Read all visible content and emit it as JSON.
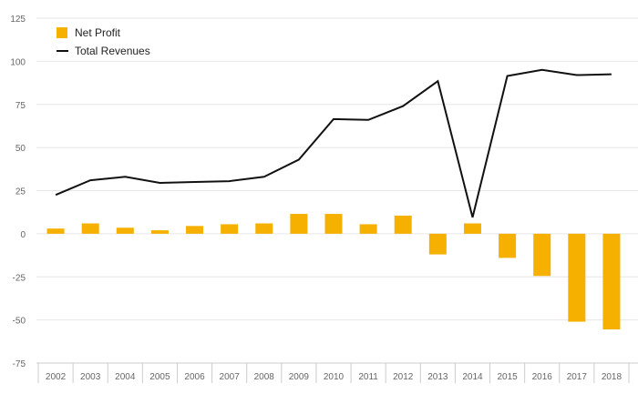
{
  "chart_data": {
    "type": "bar",
    "categories": [
      "2002",
      "2003",
      "2004",
      "2005",
      "2006",
      "2007",
      "2008",
      "2009",
      "2010",
      "2011",
      "2012",
      "2013",
      "2014",
      "2015",
      "2016",
      "2017",
      "2018"
    ],
    "series": [
      {
        "name": "Net Profit",
        "type": "bar",
        "color": "#f5b000",
        "values": [
          3,
          6,
          3.5,
          2,
          4.5,
          5.5,
          6,
          11.5,
          11.5,
          5.5,
          10.5,
          -12,
          6,
          -14,
          -24.5,
          -51,
          -55.5
        ]
      },
      {
        "name": "Total Revenues",
        "type": "line",
        "color": "#111111",
        "values": [
          22.5,
          31,
          33,
          29.5,
          30,
          30.5,
          33,
          43,
          66.5,
          66,
          74,
          88.5,
          9.5,
          91.5,
          95,
          92,
          92.5
        ]
      }
    ],
    "ylim": [
      -75,
      125
    ],
    "yticks": [
      125,
      100,
      75,
      50,
      25,
      0,
      -25,
      -50,
      -75
    ],
    "grid": true,
    "legend": "top-left",
    "title": "",
    "xlabel": "",
    "ylabel": ""
  },
  "legend": {
    "items": [
      {
        "label": "Net Profit",
        "icon": "bar-swatch"
      },
      {
        "label": "Total Revenues",
        "icon": "line-swatch"
      }
    ]
  }
}
